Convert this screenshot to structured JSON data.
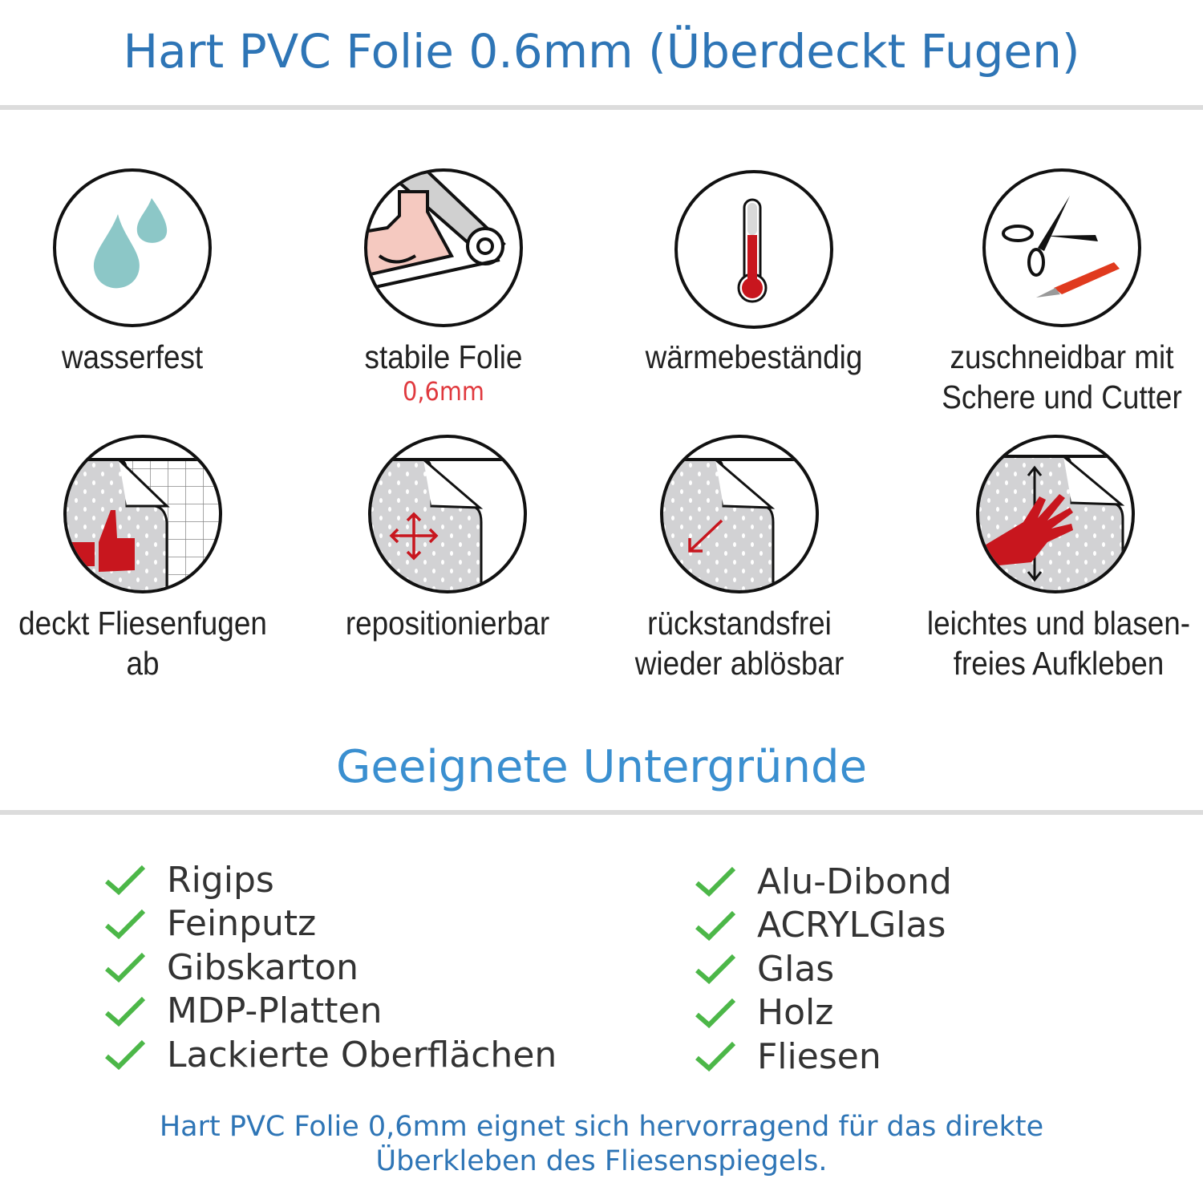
{
  "header": {
    "title": "Hart PVC Folie 0.6mm (Überdeckt Fugen)"
  },
  "features": [
    {
      "icon": "water-drops-icon",
      "label": "wasserfest"
    },
    {
      "icon": "flexed-arm-roll-icon",
      "label": "stabile Folie",
      "sub": "0,6mm"
    },
    {
      "icon": "thermometer-icon",
      "label": "wärmebeständig"
    },
    {
      "icon": "scissors-cutter-icon",
      "label": "zuschneidbar mit",
      "label2": "Schere und Cutter"
    },
    {
      "icon": "thumbs-up-tiles-icon",
      "label": "deckt Fliesenfugen ab"
    },
    {
      "icon": "move-arrows-icon",
      "label": "repositionierbar"
    },
    {
      "icon": "peel-arrow-icon",
      "label": "rückstandsfrei",
      "label2": "wieder ablösbar"
    },
    {
      "icon": "hand-smooth-icon",
      "label": "leichtes und blasen-",
      "label2": "freies Aufkleben"
    }
  ],
  "surfaces": {
    "title": "Geeignete Untergründe",
    "left": [
      "Rigips",
      "Feinputz",
      "Gibskarton",
      "MDP-Platten",
      "Lackierte Oberflächen"
    ],
    "right": [
      "Alu-Dibond",
      "ACRYLGlas",
      "Glas",
      "Holz",
      "Fliesen"
    ]
  },
  "footer": {
    "line1": "Hart PVC Folie 0,6mm eignet sich hervorragend für das direkte",
    "line2": "Überkleben des Fliesenspiegels."
  },
  "colors": {
    "title": "#2e75b6",
    "check": "#4cb748",
    "accent_red": "#c8161e",
    "drop": "#8cc7c7"
  }
}
